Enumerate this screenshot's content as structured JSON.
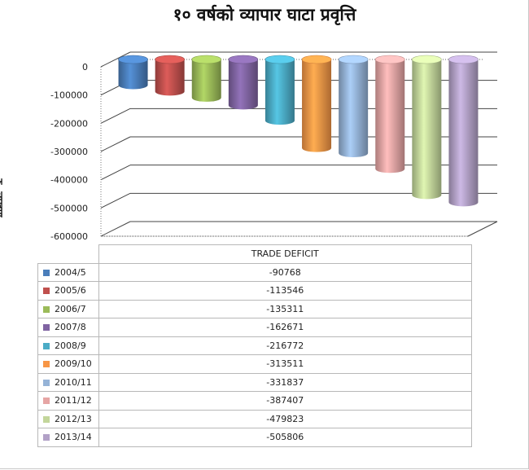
{
  "chart_data": {
    "type": "bar",
    "title": "१० वर्षको व्यापार घाटा प्रवृत्ति",
    "ylabel": "रु. लाखमा",
    "table_header": "TRADE DEFICIT",
    "categories": [
      "2004/5",
      "2005/6",
      "2006/7",
      "2007/8",
      "2008/9",
      "2009/10",
      "2010/11",
      "2011/12",
      "2012/13",
      "2013/14"
    ],
    "series": [
      {
        "name": "TRADE DEFICIT",
        "values": [
          -90768,
          -113546,
          -135311,
          -162671,
          -216772,
          -313511,
          -331837,
          -387407,
          -479823,
          -505806
        ],
        "value_labels": [
          "-90768",
          "-113546",
          "-135311",
          "-162671",
          "-216772",
          "-313511",
          "-331837",
          "-387407",
          "-479823",
          "-505806"
        ]
      }
    ],
    "colors": [
      "#4a7ebb",
      "#c0504d",
      "#9bbb59",
      "#8064a2",
      "#4bacc6",
      "#f79646",
      "#95b3d7",
      "#e6a5a4",
      "#c3d69b",
      "#b2a1c7"
    ],
    "ylim": [
      -600000,
      0
    ],
    "yticks": [
      "0",
      "-100000",
      "-200000",
      "-300000",
      "-400000",
      "-500000",
      "-600000"
    ],
    "grid": true,
    "style": "3d-cylinder",
    "legend": "data-table"
  }
}
